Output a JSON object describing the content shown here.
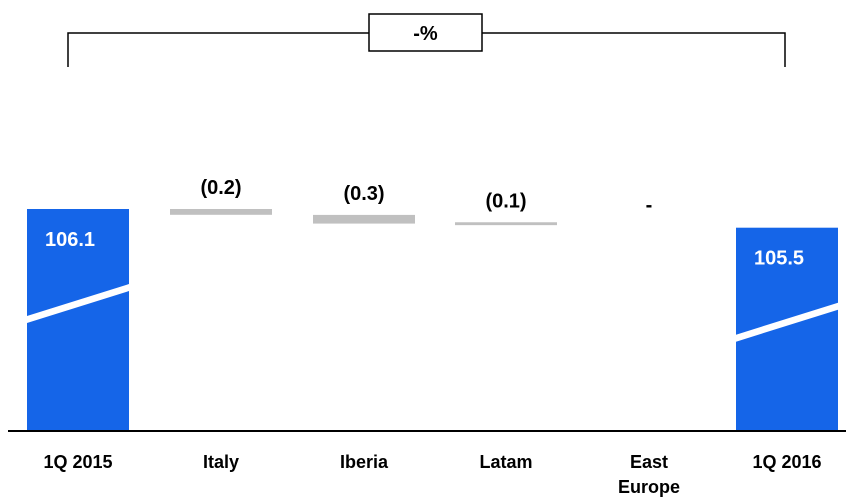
{
  "chart_data": {
    "type": "bar",
    "subtype": "waterfall",
    "categories": [
      "1Q 2015",
      "Italy",
      "Iberia",
      "Latam",
      "East Europe",
      "1Q 2016"
    ],
    "category_lines": [
      [
        "1Q 2015"
      ],
      [
        "Italy"
      ],
      [
        "Iberia"
      ],
      [
        "Latam"
      ],
      [
        "East",
        "Europe"
      ],
      [
        "1Q 2016"
      ]
    ],
    "values": [
      106.1,
      -0.2,
      -0.3,
      -0.1,
      0,
      105.5
    ],
    "value_labels": [
      "106.1",
      "(0.2)",
      "(0.3)",
      "(0.1)",
      "-",
      "105.5"
    ],
    "bar_kinds": [
      "total",
      "delta",
      "delta",
      "delta",
      "delta",
      "total"
    ],
    "annotation": "-%",
    "colors": {
      "total": "#1565E8",
      "delta": "#C0C0C0",
      "axis": "#000000"
    }
  }
}
